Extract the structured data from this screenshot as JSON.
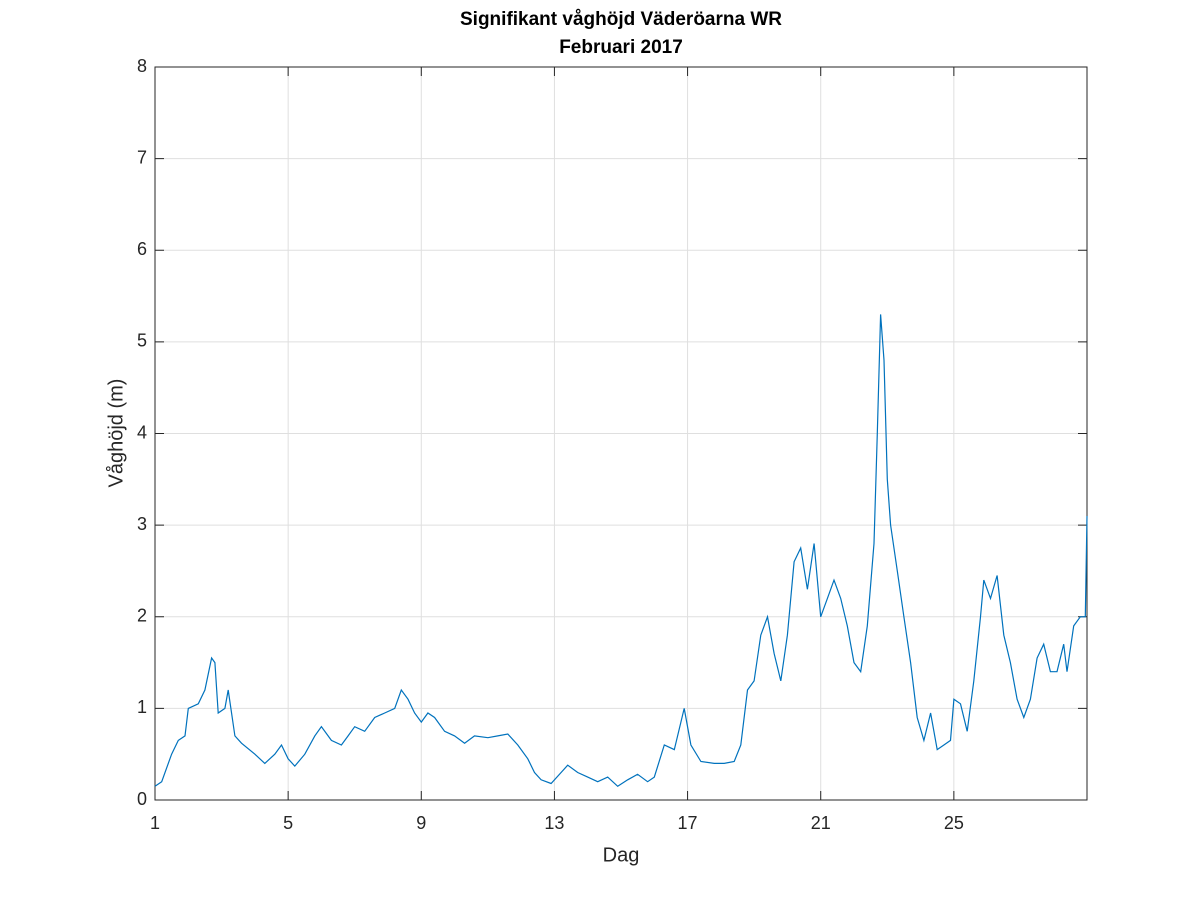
{
  "chart_data": {
    "type": "line",
    "title": "Signifikant våghöjd Väderöarna WR",
    "subtitle": "Februari 2017",
    "x_label": "Dag",
    "y_label": "Våghöjd (m)",
    "xlim": [
      1,
      29
    ],
    "xticks": [
      1,
      5,
      9,
      13,
      17,
      21,
      25
    ],
    "ylim": [
      0,
      8
    ],
    "yticks": [
      0,
      1,
      2,
      3,
      4,
      5,
      6,
      7,
      8
    ],
    "grid": true,
    "x": [
      1.0,
      1.2,
      1.5,
      1.7,
      1.9,
      2.0,
      2.3,
      2.5,
      2.7,
      2.8,
      2.9,
      3.1,
      3.2,
      3.4,
      3.6,
      4.0,
      4.3,
      4.6,
      4.8,
      5.0,
      5.2,
      5.5,
      5.8,
      6.0,
      6.3,
      6.6,
      6.8,
      7.0,
      7.3,
      7.6,
      7.9,
      8.2,
      8.4,
      8.6,
      8.8,
      9.0,
      9.2,
      9.4,
      9.7,
      10.0,
      10.3,
      10.6,
      11.0,
      11.3,
      11.6,
      11.9,
      12.2,
      12.4,
      12.6,
      12.9,
      13.2,
      13.4,
      13.7,
      14.0,
      14.3,
      14.6,
      14.9,
      15.2,
      15.5,
      15.8,
      16.0,
      16.3,
      16.6,
      16.8,
      16.9,
      17.1,
      17.4,
      17.8,
      18.1,
      18.4,
      18.6,
      18.8,
      19.0,
      19.2,
      19.4,
      19.6,
      19.8,
      20.0,
      20.2,
      20.4,
      20.6,
      20.8,
      21.0,
      21.2,
      21.4,
      21.6,
      21.8,
      22.0,
      22.2,
      22.4,
      22.6,
      22.7,
      22.8,
      22.9,
      23.0,
      23.1,
      23.3,
      23.5,
      23.7,
      23.9,
      24.1,
      24.3,
      24.5,
      24.7,
      24.9,
      25.0,
      25.2,
      25.4,
      25.6,
      25.8,
      25.9,
      26.1,
      26.3,
      26.5,
      26.7,
      26.9,
      27.1,
      27.3,
      27.5,
      27.7,
      27.9,
      28.1,
      28.3,
      28.4,
      28.6,
      28.8,
      28.95,
      29.0
    ],
    "series": [
      {
        "name": "Våghöjd",
        "color": "#0072bd",
        "values": [
          0.15,
          0.2,
          0.5,
          0.65,
          0.7,
          1.0,
          1.05,
          1.2,
          1.55,
          1.5,
          0.95,
          1.0,
          1.2,
          0.7,
          0.62,
          0.5,
          0.4,
          0.5,
          0.6,
          0.45,
          0.37,
          0.5,
          0.7,
          0.8,
          0.65,
          0.6,
          0.7,
          0.8,
          0.75,
          0.9,
          0.95,
          1.0,
          1.2,
          1.1,
          0.95,
          0.85,
          0.95,
          0.9,
          0.75,
          0.7,
          0.62,
          0.7,
          0.68,
          0.7,
          0.72,
          0.6,
          0.45,
          0.3,
          0.22,
          0.18,
          0.3,
          0.38,
          0.3,
          0.25,
          0.2,
          0.25,
          0.15,
          0.22,
          0.28,
          0.2,
          0.25,
          0.6,
          0.55,
          0.85,
          1.0,
          0.6,
          0.42,
          0.4,
          0.4,
          0.42,
          0.6,
          1.2,
          1.3,
          1.8,
          2.0,
          1.6,
          1.3,
          1.8,
          2.6,
          2.75,
          2.3,
          2.8,
          2.0,
          2.2,
          2.4,
          2.2,
          1.9,
          1.5,
          1.4,
          1.9,
          2.8,
          4.0,
          5.3,
          4.8,
          3.5,
          3.0,
          2.5,
          2.0,
          1.5,
          0.9,
          0.65,
          0.95,
          0.55,
          0.6,
          0.65,
          1.1,
          1.05,
          0.75,
          1.3,
          2.0,
          2.4,
          2.2,
          2.45,
          1.8,
          1.5,
          1.1,
          0.9,
          1.1,
          1.55,
          1.7,
          1.4,
          1.4,
          1.7,
          1.4,
          1.9,
          2.0,
          2.0,
          3.1
        ]
      }
    ]
  }
}
